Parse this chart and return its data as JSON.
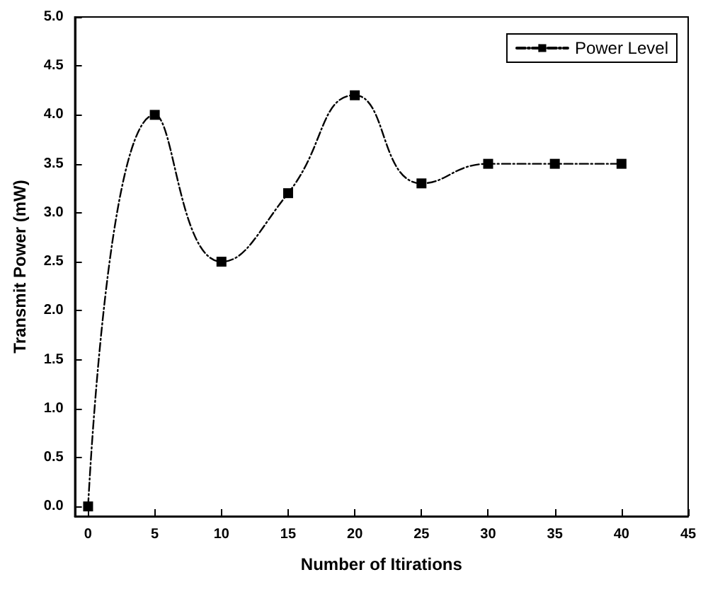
{
  "chart_data": {
    "type": "line",
    "xlabel": "Number of Itirations",
    "ylabel": "Transmit Power (mW)",
    "x": [
      0,
      5,
      10,
      15,
      20,
      25,
      30,
      35,
      40
    ],
    "series": [
      {
        "name": "Power Level",
        "color": "#000000",
        "values": [
          0,
          4.0,
          2.5,
          3.2,
          4.2,
          3.3,
          3.5,
          3.5,
          3.5
        ]
      }
    ],
    "xlim": [
      -1,
      45
    ],
    "xticks": [
      0,
      5,
      10,
      15,
      20,
      25,
      30,
      35,
      40,
      45
    ],
    "ylim": [
      -0.1,
      5
    ],
    "yticks": [
      {
        "value": 0,
        "label": "0.0"
      },
      {
        "value": 0.5,
        "label": "0.5"
      },
      {
        "value": 1,
        "label": "1.0"
      },
      {
        "value": 1.5,
        "label": "1.5"
      },
      {
        "value": 2,
        "label": "2.0"
      },
      {
        "value": 2.5,
        "label": "2.5"
      },
      {
        "value": 3,
        "label": "3.0"
      },
      {
        "value": 3.5,
        "label": "3.5"
      },
      {
        "value": 4,
        "label": "4.0"
      },
      {
        "value": 4.5,
        "label": "4.5"
      },
      {
        "value": 5,
        "label": "5.0"
      }
    ],
    "grid": false,
    "legend": "top right",
    "marker": "square",
    "line_style": "dashed"
  }
}
